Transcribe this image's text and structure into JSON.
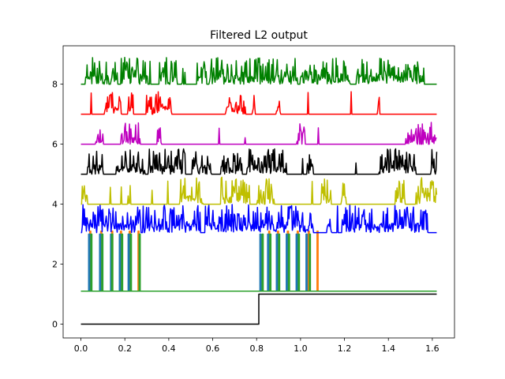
{
  "chart_data": {
    "type": "line",
    "title": "Filtered L2 output",
    "xlabel": "",
    "ylabel": "",
    "xlim": [
      -0.081,
      1.701
    ],
    "ylim": [
      -0.46,
      9.28
    ],
    "xticks": [
      0.0,
      0.2,
      0.4,
      0.6,
      0.8,
      1.0,
      1.2,
      1.4,
      1.6
    ],
    "xtick_labels": [
      "0.0",
      "0.2",
      "0.4",
      "0.6",
      "0.8",
      "1.0",
      "1.2",
      "1.4",
      "1.6"
    ],
    "yticks": [
      0,
      2,
      4,
      6,
      8
    ],
    "ytick_labels": [
      "0",
      "2",
      "4",
      "6",
      "8"
    ],
    "grid": false,
    "legend": "none",
    "x_end": 1.62,
    "series": [
      {
        "kind": "step",
        "color": "#000000",
        "baseline": 0.0,
        "high": 1.0,
        "step_at": 0.81
      },
      {
        "kind": "pulses",
        "color": "#ff7f0e",
        "baseline": 1.1,
        "high": 3.1,
        "pulses": [
          [
            0.04,
            0.045
          ],
          [
            0.09,
            0.095
          ],
          [
            0.14,
            0.145
          ],
          [
            0.18,
            0.185
          ],
          [
            0.22,
            0.225
          ],
          [
            0.26,
            0.265
          ],
          [
            0.855,
            0.86
          ],
          [
            0.895,
            0.9
          ],
          [
            0.94,
            0.945
          ],
          [
            0.985,
            0.99
          ],
          [
            1.035,
            1.04
          ],
          [
            1.075,
            1.08
          ]
        ]
      },
      {
        "kind": "pulses",
        "color": "#1f77b4",
        "baseline": 1.1,
        "high": 3.0,
        "pulses": [
          [
            0.035,
            0.04
          ],
          [
            0.085,
            0.09
          ],
          [
            0.135,
            0.14
          ],
          [
            0.175,
            0.18
          ],
          [
            0.215,
            0.22
          ],
          [
            0.815,
            0.82
          ],
          [
            0.85,
            0.855
          ],
          [
            0.89,
            0.895
          ],
          [
            0.935,
            0.94
          ],
          [
            0.98,
            0.985
          ],
          [
            1.025,
            1.03
          ]
        ]
      },
      {
        "kind": "pulses",
        "color": "#2ca02c",
        "baseline": 1.1,
        "high": 3.0,
        "pulses": [
          [
            0.045,
            0.05
          ],
          [
            0.095,
            0.1
          ],
          [
            0.14,
            0.145
          ],
          [
            0.185,
            0.19
          ],
          [
            0.225,
            0.23
          ],
          [
            0.265,
            0.27
          ],
          [
            0.825,
            0.83
          ],
          [
            0.86,
            0.865
          ],
          [
            0.9,
            0.905
          ],
          [
            0.945,
            0.95
          ],
          [
            0.99,
            0.995
          ],
          [
            1.04,
            1.045
          ]
        ]
      },
      {
        "kind": "spikes",
        "color": "#0000ff",
        "baseline": 3.05,
        "amp": 0.95,
        "density": 0.9,
        "seed": 7
      },
      {
        "kind": "spikes",
        "color": "#bfbf00",
        "baseline": 4.0,
        "amp": 0.9,
        "density": 0.35,
        "seed": 13
      },
      {
        "kind": "spikes",
        "color": "#000000",
        "baseline": 5.0,
        "amp": 0.85,
        "density": 0.55,
        "seed": 21
      },
      {
        "kind": "spikes",
        "color": "#bf00bf",
        "baseline": 6.0,
        "amp": 0.75,
        "density": 0.35,
        "seed": 33
      },
      {
        "kind": "spikes",
        "color": "#ff0000",
        "baseline": 7.0,
        "amp": 0.85,
        "density": 0.25,
        "seed": 45
      },
      {
        "kind": "spikes",
        "color": "#008000",
        "baseline": 8.0,
        "amp": 0.9,
        "density": 0.75,
        "seed": 57
      }
    ]
  }
}
